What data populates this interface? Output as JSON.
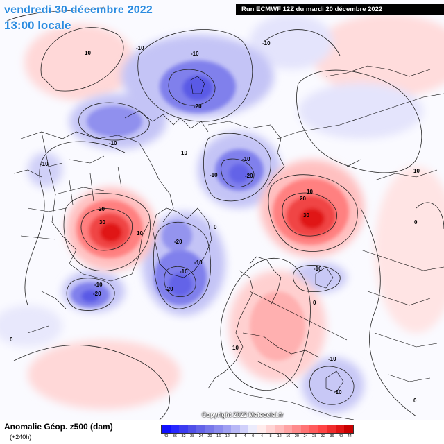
{
  "header": {
    "date": "vendredi 30 décembre 2022",
    "time": "13:00 locale",
    "run": "Run ECMWF 12Z du mardi 20 décembre 2022"
  },
  "footer": {
    "title": "Anomalie Géop. z500 (dam)",
    "lead": "(+240h)",
    "copyright": "Copyright 2022 Meteociel.fr"
  },
  "scale": {
    "labels": [
      "-40",
      "-36",
      "-32",
      "-28",
      "-24",
      "-20",
      "-16",
      "-12",
      "-8",
      "-4",
      "0",
      "4",
      "8",
      "12",
      "16",
      "20",
      "24",
      "28",
      "32",
      "36",
      "40",
      "44"
    ],
    "colors": [
      "#1010ff",
      "#2828ff",
      "#3c3cf0",
      "#5050e8",
      "#6464e8",
      "#7878ea",
      "#8c8cee",
      "#a0a0f2",
      "#b8b8f6",
      "#d0d0fa",
      "#ececfc",
      "#ffecec",
      "#ffd4d4",
      "#ffbcbc",
      "#ffa4a4",
      "#ff8c8c",
      "#ff7474",
      "#ff5c5c",
      "#ff4444",
      "#f02c2c",
      "#e01414",
      "#c80000"
    ]
  },
  "contour_labels": [
    {
      "text": "10"
    },
    {
      "text": "-10"
    },
    {
      "text": "-10"
    },
    {
      "text": "-10"
    },
    {
      "text": "-20"
    },
    {
      "text": "-10"
    },
    {
      "text": "-10"
    },
    {
      "text": "-10"
    },
    {
      "text": "10"
    },
    {
      "text": "-10"
    },
    {
      "text": "-20"
    },
    {
      "text": "20"
    },
    {
      "text": "30"
    },
    {
      "text": "10"
    },
    {
      "text": "-20"
    },
    {
      "text": "-10"
    },
    {
      "text": "-10"
    },
    {
      "text": "-20"
    },
    {
      "text": "-10"
    },
    {
      "text": "-20"
    },
    {
      "text": "10"
    },
    {
      "text": "20"
    },
    {
      "text": "30"
    },
    {
      "text": "-10"
    },
    {
      "text": "0"
    },
    {
      "text": "0"
    },
    {
      "text": "10"
    },
    {
      "text": "-10"
    },
    {
      "text": "-10"
    },
    {
      "text": "0"
    },
    {
      "text": "0"
    },
    {
      "text": "10"
    },
    {
      "text": "0"
    }
  ],
  "colors": {
    "negative_strong": "#4646e6",
    "negative_weak": "#c8c8f8",
    "positive_strong": "#f03c3c",
    "positive_weak": "#ffd0d0",
    "header_text": "#2a8be0"
  }
}
